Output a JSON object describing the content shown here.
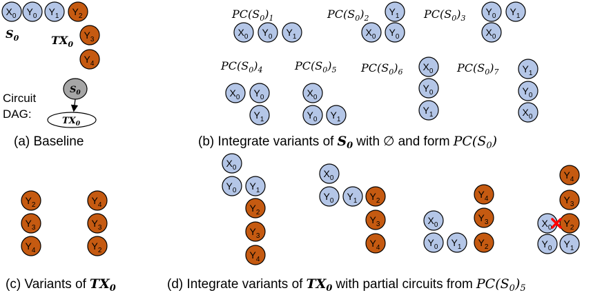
{
  "colors": {
    "blue": "#b4c6e7",
    "orange": "#c55a11",
    "stroke": "#000000",
    "dag_node": "#a6a6a6",
    "cross": "#ff0000"
  },
  "glyphs": {
    "x": "X",
    "y": "Y",
    "pc": "PC",
    "s": "S",
    "tx": "TX",
    "empty": "∅"
  },
  "qubit_subscripts": [
    "0",
    "1",
    "2",
    "3",
    "4"
  ],
  "pc_indices": [
    "1",
    "2",
    "3",
    "4",
    "5",
    "6",
    "7"
  ],
  "labels": {
    "s0_sub": "0",
    "tx0_sub": "0",
    "circuit": "Circuit",
    "dag": "DAG:",
    "a": "(a) Baseline",
    "b_pre": "(b) Integrate variants of",
    "b_mid": "with",
    "b_post": "and form",
    "c_pre": "(c) Variants of",
    "d_pre": "(d) Integrate variants of",
    "d_mid": "with partial circuits from",
    "d_sub": "5"
  }
}
